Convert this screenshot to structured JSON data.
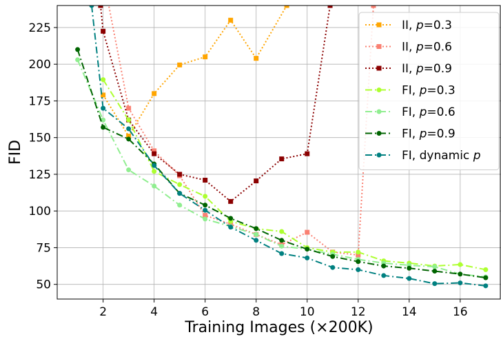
{
  "chart_data": {
    "type": "line",
    "xlabel": "Training Images (×200K)",
    "ylabel": "FID",
    "xlim": [
      0.2,
      17.6
    ],
    "ylim": [
      40,
      240
    ],
    "grid": true,
    "legend_position": "top-right",
    "x_ticks": [
      2,
      4,
      6,
      8,
      10,
      12,
      14,
      16
    ],
    "y_ticks": [
      50,
      75,
      100,
      125,
      150,
      175,
      200,
      225
    ],
    "series": [
      {
        "label": [
          "II, ",
          "p",
          "=0.3"
        ],
        "color": "#ffa500",
        "style": "dotted",
        "marker": "square",
        "x": [
          2,
          3,
          4,
          5,
          6,
          7,
          8,
          9.2
        ],
        "y": [
          179,
          151,
          180,
          199.5,
          205,
          230,
          204,
          240
        ]
      },
      {
        "label": [
          "II, ",
          "p",
          "=0.6"
        ],
        "color": "#fa8072",
        "style": "dotted",
        "marker": "square",
        "x": [
          2,
          3,
          4,
          5,
          6,
          7,
          8,
          9,
          10,
          11,
          12,
          12.6
        ],
        "y": [
          260,
          170,
          141,
          124,
          97,
          91,
          84,
          77,
          85.5,
          72,
          70,
          240
        ]
      },
      {
        "label": [
          "II, ",
          "p",
          "=0.9"
        ],
        "color": "#8b0000",
        "style": "dotted",
        "marker": "square",
        "x": [
          1.9,
          2,
          3,
          4,
          5,
          6,
          7,
          8,
          9,
          10,
          10.9
        ],
        "y": [
          240,
          222.5,
          162,
          139,
          125,
          121,
          106.5,
          120.5,
          135.5,
          139,
          240
        ]
      },
      {
        "label": [
          "FI, ",
          "p",
          "=0.3"
        ],
        "color": "#adff2f",
        "style": "dashdot",
        "marker": "circle",
        "x": [
          2,
          3,
          4,
          5,
          6,
          7,
          8,
          9,
          10,
          11,
          12,
          13,
          14,
          15,
          16,
          17
        ],
        "y": [
          189.5,
          162,
          127,
          118,
          110,
          93,
          88,
          86,
          75,
          72,
          72,
          66,
          64.5,
          62.5,
          63.5,
          60
        ]
      },
      {
        "label": [
          "FI, ",
          "p",
          "=0.6"
        ],
        "color": "#90ee90",
        "style": "dashdot",
        "marker": "circle",
        "x": [
          1,
          2,
          3,
          4,
          5,
          6,
          7,
          8,
          9,
          10,
          11,
          12,
          13,
          14,
          15,
          16,
          17
        ],
        "y": [
          203,
          162,
          128,
          117,
          104,
          94.5,
          89.5,
          84,
          76,
          74,
          70.5,
          67,
          64.5,
          63,
          62,
          57,
          55
        ]
      },
      {
        "label": [
          "FI, ",
          "p",
          "=0.9"
        ],
        "color": "#006400",
        "style": "dashdot",
        "marker": "circle",
        "x": [
          1,
          2,
          3,
          4,
          5,
          6,
          7,
          8,
          9,
          10,
          11,
          12,
          13,
          14,
          15,
          16,
          17
        ],
        "y": [
          210,
          157,
          149,
          132,
          112,
          104,
          95,
          88,
          80,
          74,
          69,
          65.5,
          62.5,
          61,
          59,
          57,
          54.5
        ]
      },
      {
        "label": [
          "FI, dynamic ",
          "p",
          ""
        ],
        "color": "#008080",
        "style": "dashdot",
        "marker": "circle",
        "x": [
          1.55,
          2,
          3,
          4,
          5,
          6,
          7,
          8,
          9,
          10,
          11,
          12,
          13,
          14,
          15,
          16,
          17
        ],
        "y": [
          240,
          170,
          156,
          131,
          112,
          100.5,
          89,
          80,
          71,
          68,
          61.5,
          60,
          56,
          54,
          50.5,
          51,
          49
        ]
      }
    ]
  }
}
